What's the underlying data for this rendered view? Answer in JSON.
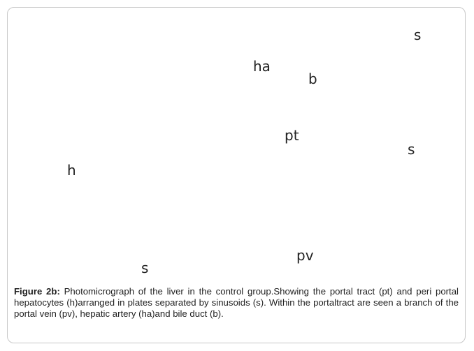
{
  "figure": {
    "labels": [
      "s",
      "ha",
      "b",
      "pt",
      "s",
      "h",
      "pv",
      "s"
    ],
    "caption": {
      "label": "Figure 2b:",
      "text": " Photomicrograph of the liver in the control group.Showing the portal tract (pt) and peri portal hepatocytes (h)arranged in plates separated by sinusoids (s). Within the portaltract are seen a branch of the portal vein (pv), hepatic artery (ha)and bile duct (b)."
    }
  }
}
